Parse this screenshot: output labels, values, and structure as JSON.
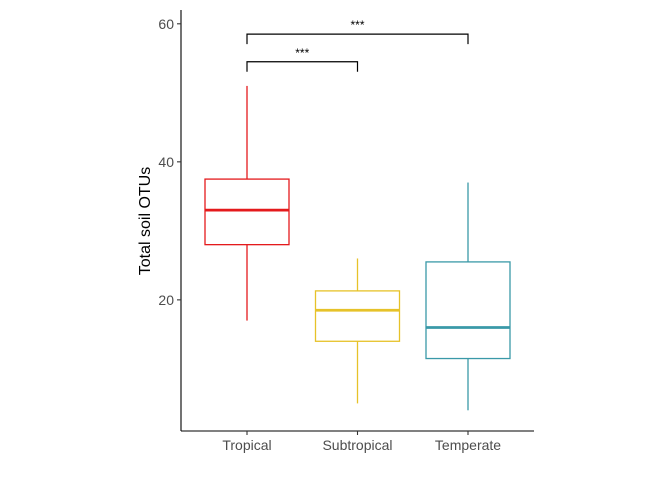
{
  "chart_data": {
    "type": "box",
    "title": "",
    "xlabel": "",
    "ylabel": "Total soil OTUs",
    "ylim": [
      1,
      62
    ],
    "yticks": [
      20,
      40,
      60
    ],
    "grid": false,
    "legend": "none",
    "categories": [
      "Tropical",
      "Subtropical",
      "Temperate"
    ],
    "boxes": [
      {
        "category": "Tropical",
        "min": 17,
        "q1": 28,
        "median": 33,
        "q3": 37.5,
        "max": 51,
        "color": "#e41a1c"
      },
      {
        "category": "Subtropical",
        "min": 5,
        "q1": 14,
        "median": 18.5,
        "q3": 21.3,
        "max": 26,
        "color": "#e6c229"
      },
      {
        "category": "Temperate",
        "min": 4,
        "q1": 11.5,
        "median": 16,
        "q3": 25.5,
        "max": 37,
        "color": "#3a99a8"
      }
    ],
    "significance": [
      {
        "from": "Tropical",
        "to": "Subtropical",
        "label": "***",
        "y": 54.5
      },
      {
        "from": "Tropical",
        "to": "Temperate",
        "label": "***",
        "y": 58.5
      }
    ]
  }
}
